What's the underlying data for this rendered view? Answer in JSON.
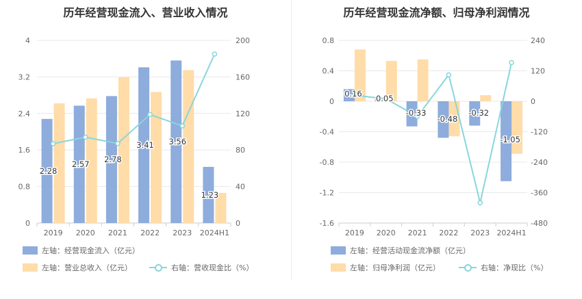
{
  "colors": {
    "bar_primary": "#8eacdc",
    "bar_secondary": "#ffdca8",
    "line": "#88d6dc"
  },
  "chart_data": [
    {
      "type": "bar",
      "title": "历年经营现金流入、营业收入情况",
      "categories": [
        "2019",
        "2020",
        "2021",
        "2022",
        "2023",
        "2024H1"
      ],
      "left_axis": {
        "min": 0,
        "max": 4,
        "ticks": [
          "0",
          "0.8",
          "1.6",
          "2.4",
          "3.2",
          "4"
        ]
      },
      "right_axis": {
        "min": 0,
        "max": 200,
        "ticks": [
          "0",
          "40",
          "80",
          "120",
          "160",
          "200"
        ]
      },
      "series": [
        {
          "name": "左轴：经营现金流入（亿元）",
          "type": "bar",
          "axis": "left",
          "values": [
            2.28,
            2.57,
            2.78,
            3.41,
            3.56,
            1.23
          ],
          "labels": [
            "2.28",
            "2.57",
            "2.78",
            "3.41",
            "3.56",
            "1.23"
          ]
        },
        {
          "name": "左轴：营业总收入（亿元）",
          "type": "bar",
          "axis": "left",
          "values": [
            2.62,
            2.73,
            3.19,
            2.87,
            3.35,
            0.66
          ]
        },
        {
          "name": "右轴：营收现金比（%）",
          "type": "line",
          "axis": "right",
          "values": [
            86.9,
            94.0,
            87.1,
            118.8,
            106.4,
            185.0
          ]
        }
      ],
      "grid": true
    },
    {
      "type": "bar",
      "title": "历年经营现金流净额、归母净利润情况",
      "categories": [
        "2019",
        "2020",
        "2021",
        "2022",
        "2023",
        "2024H1"
      ],
      "left_axis": {
        "min": -1.6,
        "max": 0.8,
        "ticks": [
          "-1.6",
          "-1.2",
          "-0.8",
          "-0.4",
          "0",
          "0.4",
          "0.8"
        ]
      },
      "right_axis": {
        "min": -480,
        "max": 240,
        "ticks": [
          "-480",
          "-360",
          "-240",
          "-120",
          "0",
          "120",
          "240"
        ]
      },
      "series": [
        {
          "name": "左轴：经营活动现金流净额（亿元）",
          "type": "bar",
          "axis": "left",
          "values": [
            0.16,
            0.05,
            -0.33,
            -0.48,
            -0.32,
            -1.05
          ],
          "labels": [
            "0.16",
            "0.05",
            "-0.33",
            "-0.48",
            "-0.32",
            "-1.05"
          ]
        },
        {
          "name": "左轴：归母净利润（亿元）",
          "type": "bar",
          "axis": "left",
          "values": [
            0.68,
            0.53,
            0.55,
            -0.46,
            0.08,
            -0.69
          ]
        },
        {
          "name": "右轴：净现比（%）",
          "type": "line",
          "axis": "right",
          "values": [
            23.5,
            9.4,
            -60.0,
            104.3,
            -400.0,
            152.2
          ]
        }
      ],
      "grid": true
    }
  ]
}
